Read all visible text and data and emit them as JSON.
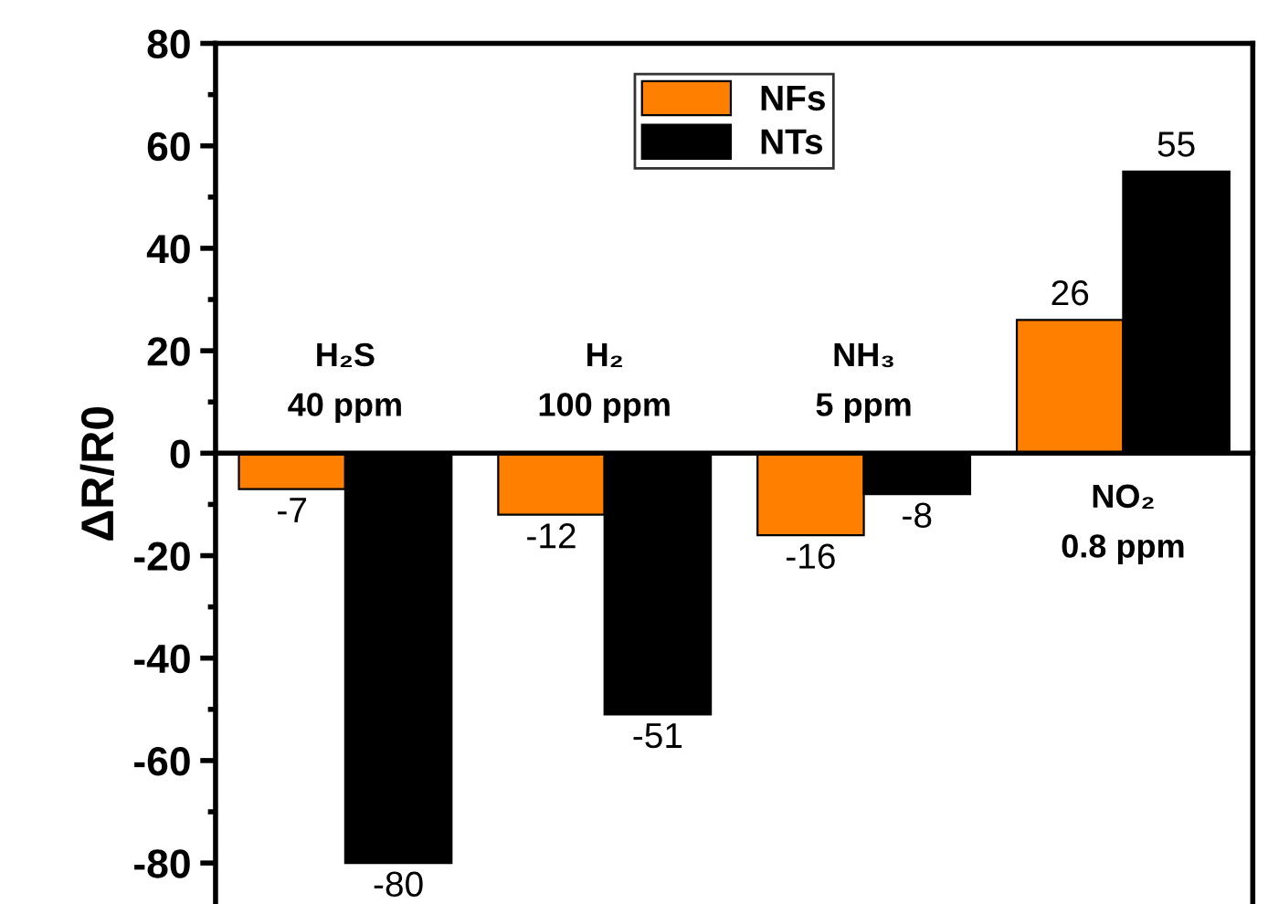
{
  "chart_data": {
    "type": "bar",
    "ylabel": "ΔR/R0",
    "categories": [
      "H₂S\n40 ppm",
      "H₂\n100 ppm",
      "NH₃\n5 ppm",
      "NO₂\n0.8 ppm"
    ],
    "series": [
      {
        "name": "NFs",
        "color": "#ff8000",
        "values": [
          -7,
          -12,
          -16,
          26
        ]
      },
      {
        "name": "NTs",
        "color": "#000000",
        "values": [
          -80,
          -51,
          -8,
          55
        ]
      }
    ],
    "ylim": [
      -88,
      80
    ],
    "yticks": [
      -80,
      -60,
      -40,
      -20,
      0,
      20,
      40,
      60,
      80
    ],
    "data_labels": true,
    "legend": "top",
    "grid": false
  }
}
